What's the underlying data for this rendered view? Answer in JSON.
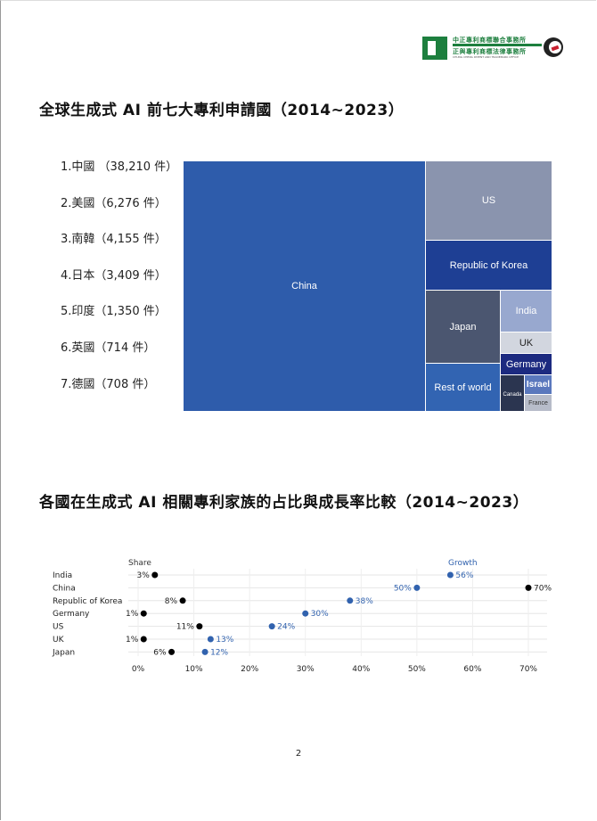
{
  "logo": {
    "line1": "中正專利商標聯合事務所",
    "line2": "正與專利商標法律事務所",
    "line3": "CHUNG CHENG PATENT AND TRADEMARK OFFICE"
  },
  "section1_title": "全球生成式 AI 前七大專利申請國（2014~2023）",
  "ranking": [
    "1.中國 （38,210 件）",
    "2.美國（6,276 件）",
    "3.南韓（4,155 件）",
    "4.日本（3,409 件）",
    "5.印度（1,350 件）",
    "6.英國（714 件）",
    "7.德國（708 件）"
  ],
  "section2_title": "各國在生成式 AI 相關專利家族的占比與成長率比較（2014~2023）",
  "page_number": "2",
  "chart_data": [
    {
      "type": "treemap",
      "cells": [
        {
          "label": "China",
          "color": "#2e5cab"
        },
        {
          "label": "US",
          "color": "#8a94ae"
        },
        {
          "label": "Republic of Korea",
          "color": "#1e3f94"
        },
        {
          "label": "Japan",
          "color": "#4b5670"
        },
        {
          "label": "India",
          "color": "#98a8cf"
        },
        {
          "label": "UK",
          "color": "#d2d6df"
        },
        {
          "label": "Germany",
          "color": "#1c2a80"
        },
        {
          "label": "Rest of world",
          "color": "#3264b2"
        },
        {
          "label": "Canada",
          "color": "#2b3550"
        },
        {
          "label": "Israel",
          "color": "#5a78bd"
        },
        {
          "label": "France",
          "color": "#b7bcc9"
        }
      ]
    },
    {
      "type": "scatter",
      "categories": [
        "India",
        "China",
        "Republic of Korea",
        "Germany",
        "US",
        "UK",
        "Japan"
      ],
      "series": [
        {
          "name": "Share",
          "values": [
            3,
            70,
            8,
            1,
            11,
            1,
            6
          ],
          "labels": [
            "3%",
            "70%",
            "8%",
            "1%",
            "11%",
            "1%",
            "6%"
          ],
          "color": "#000000"
        },
        {
          "name": "Growth",
          "values": [
            56,
            50,
            38,
            30,
            24,
            13,
            12
          ],
          "labels": [
            "56%",
            "50%",
            "38%",
            "30%",
            "24%",
            "13%",
            "12%"
          ],
          "color": "#3162ae"
        }
      ],
      "xlim": [
        0,
        70
      ],
      "xticks": [
        "0%",
        "10%",
        "20%",
        "30%",
        "40%",
        "50%",
        "60%",
        "70%"
      ],
      "grid": true
    }
  ]
}
